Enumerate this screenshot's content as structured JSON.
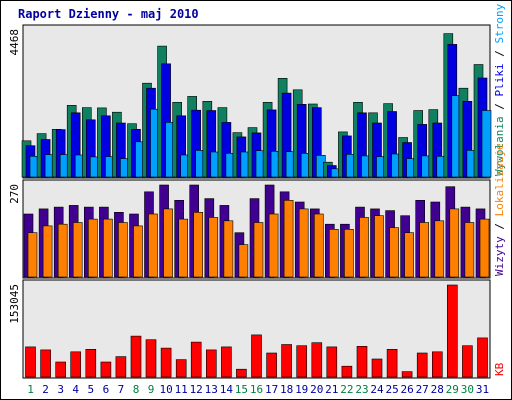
{
  "chart_data": {
    "type": "bar",
    "title": "Raport Dzienny -  maj 2010",
    "categories": [
      "1",
      "2",
      "3",
      "4",
      "5",
      "6",
      "7",
      "8",
      "9",
      "10",
      "11",
      "12",
      "13",
      "14",
      "15",
      "16",
      "17",
      "18",
      "19",
      "20",
      "21",
      "22",
      "23",
      "24",
      "25",
      "26",
      "27",
      "28",
      "29",
      "30",
      "31"
    ],
    "weekend_days": [
      "1",
      "8",
      "9",
      "15",
      "16",
      "22",
      "23",
      "29",
      "30"
    ],
    "colors": {
      "title": "#0000a0",
      "frame_bg": "#e8e8e8",
      "weekday": "#0000a0",
      "weekend": "#008040",
      "hits": "#108060",
      "files": "#0000e0",
      "pages": "#00a0ff",
      "visits": "#400090",
      "sites": "#ff8000",
      "kbytes": "#ff0000"
    },
    "panels": [
      {
        "id": "top",
        "max_label": "4468",
        "ylim": [
          0,
          4468
        ],
        "series": [
          {
            "name": "Wywołania",
            "color": "#108060",
            "values": [
              1100,
              1320,
              1450,
              2180,
              2110,
              2100,
              1970,
              1620,
              2850,
              3980,
              2270,
              2450,
              2300,
              2110,
              1350,
              1500,
              2270,
              3000,
              2650,
              2220,
              450,
              1370,
              2270,
              1950,
              2230,
              1200,
              2020,
              2050,
              4360,
              2700,
              3420
            ]
          },
          {
            "name": "Pliki",
            "color": "#0000e0",
            "values": [
              950,
              1140,
              1440,
              1950,
              1740,
              1860,
              1640,
              1450,
              2700,
              3440,
              1860,
              2030,
              2020,
              1660,
              1220,
              1340,
              2040,
              2550,
              2210,
              2110,
              350,
              1250,
              1950,
              1640,
              1990,
              1050,
              1600,
              1640,
              4030,
              2300,
              3010
            ]
          },
          {
            "name": "Strony",
            "color": "#00a0ff",
            "values": [
              630,
              680,
              680,
              670,
              610,
              620,
              560,
              1070,
              2060,
              1660,
              670,
              810,
              760,
              720,
              760,
              800,
              780,
              770,
              720,
              660,
              250,
              690,
              640,
              620,
              700,
              560,
              640,
              630,
              2470,
              810,
              2020
            ]
          }
        ]
      },
      {
        "id": "middle",
        "max_label": "270",
        "ylim": [
          0,
          270
        ],
        "series": [
          {
            "name": "Wizyty",
            "color": "#400090",
            "values": [
              185,
              200,
              205,
              210,
              205,
              205,
              190,
              185,
              250,
              270,
              225,
              270,
              230,
              210,
              130,
              230,
              270,
              250,
              220,
              200,
              155,
              155,
              205,
              200,
              195,
              180,
              225,
              220,
              265,
              205,
              200
            ]
          },
          {
            "name": "Lokalizacje",
            "color": "#ff8000",
            "values": [
              130,
              150,
              155,
              160,
              170,
              170,
              160,
              150,
              185,
              200,
              170,
              190,
              175,
              165,
              95,
              160,
              185,
              225,
              200,
              185,
              140,
              140,
              175,
              180,
              145,
              130,
              160,
              165,
              200,
              160,
              170
            ]
          }
        ]
      },
      {
        "id": "bottom",
        "max_label": "153045",
        "ylim": [
          0,
          153045
        ],
        "series": [
          {
            "name": "KB",
            "color": "#ff0000",
            "values": [
              50000,
              45000,
              25000,
              42000,
              46000,
              25000,
              34000,
              68000,
              62000,
              48000,
              29000,
              58000,
              45000,
              50000,
              13000,
              70000,
              40000,
              54000,
              52000,
              57000,
              50000,
              18000,
              51000,
              30000,
              46000,
              9000,
              40000,
              42000,
              153045,
              52000,
              65000
            ]
          }
        ]
      }
    ],
    "right_labels": {
      "top": [
        "Wywołania",
        "/",
        "Pliki",
        "/",
        "Strony"
      ],
      "middle": [
        "Wizyty",
        "/",
        "Lokalizacje"
      ],
      "bottom": [
        "KB"
      ]
    }
  }
}
